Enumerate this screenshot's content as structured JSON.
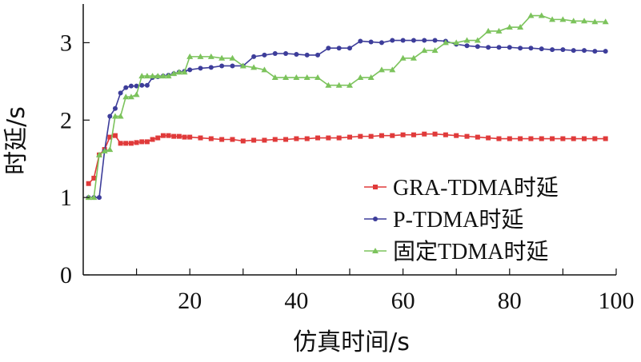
{
  "chart_data": {
    "type": "line",
    "xlabel": "仿真时间/s",
    "ylabel": "时延/s",
    "xlim": [
      0,
      100
    ],
    "ylim": [
      0,
      3.5
    ],
    "xticks": [
      20,
      40,
      60,
      80,
      100
    ],
    "yticks": [
      0,
      1,
      2,
      3
    ],
    "grid": false,
    "legend_position": "bottom-right",
    "series": [
      {
        "name": "GRA-TDMA时延",
        "color": "#e03a3a",
        "marker": "square",
        "x": [
          1,
          2,
          3,
          4,
          5,
          6,
          7,
          8,
          9,
          10,
          11,
          12,
          13,
          14,
          15,
          16,
          17,
          18,
          19,
          20,
          22,
          24,
          26,
          28,
          30,
          32,
          34,
          36,
          38,
          40,
          42,
          44,
          46,
          48,
          50,
          52,
          54,
          56,
          58,
          60,
          62,
          64,
          66,
          68,
          70,
          72,
          74,
          76,
          78,
          80,
          82,
          84,
          86,
          88,
          90,
          92,
          94,
          96,
          98
        ],
        "y": [
          1.18,
          1.25,
          1.55,
          1.62,
          1.78,
          1.8,
          1.7,
          1.7,
          1.7,
          1.71,
          1.72,
          1.72,
          1.75,
          1.77,
          1.8,
          1.8,
          1.79,
          1.79,
          1.78,
          1.78,
          1.77,
          1.76,
          1.75,
          1.75,
          1.73,
          1.74,
          1.74,
          1.75,
          1.75,
          1.76,
          1.76,
          1.77,
          1.77,
          1.77,
          1.78,
          1.79,
          1.79,
          1.8,
          1.8,
          1.81,
          1.81,
          1.82,
          1.82,
          1.81,
          1.8,
          1.79,
          1.78,
          1.77,
          1.76,
          1.76,
          1.76,
          1.76,
          1.76,
          1.76,
          1.76,
          1.76,
          1.76,
          1.76,
          1.76
        ]
      },
      {
        "name": "P-TDMA时延",
        "color": "#3d3d9a",
        "marker": "circle",
        "x": [
          1,
          2,
          3,
          4,
          5,
          6,
          7,
          8,
          9,
          10,
          11,
          12,
          13,
          14,
          15,
          16,
          17,
          18,
          19,
          20,
          22,
          24,
          26,
          28,
          30,
          32,
          34,
          36,
          38,
          40,
          42,
          44,
          46,
          48,
          50,
          52,
          54,
          56,
          58,
          60,
          62,
          64,
          66,
          68,
          70,
          72,
          74,
          76,
          78,
          80,
          82,
          84,
          86,
          88,
          90,
          92,
          94,
          96,
          98
        ],
        "y": [
          1.0,
          1.0,
          1.0,
          1.6,
          2.05,
          2.15,
          2.35,
          2.42,
          2.44,
          2.44,
          2.45,
          2.45,
          2.55,
          2.56,
          2.57,
          2.58,
          2.6,
          2.62,
          2.63,
          2.65,
          2.67,
          2.68,
          2.7,
          2.7,
          2.7,
          2.82,
          2.84,
          2.86,
          2.86,
          2.85,
          2.84,
          2.84,
          2.93,
          2.93,
          2.93,
          3.02,
          3.01,
          3.0,
          3.03,
          3.03,
          3.03,
          3.03,
          3.03,
          3.02,
          2.98,
          2.96,
          2.95,
          2.94,
          2.94,
          2.94,
          2.93,
          2.93,
          2.92,
          2.91,
          2.91,
          2.9,
          2.9,
          2.89,
          2.89
        ]
      },
      {
        "name": "固定TDMA时延",
        "color": "#7cc35c",
        "marker": "triangle",
        "x": [
          1,
          2,
          3,
          4,
          5,
          6,
          7,
          8,
          9,
          10,
          11,
          12,
          13,
          14,
          15,
          16,
          17,
          18,
          19,
          20,
          22,
          24,
          26,
          28,
          30,
          32,
          34,
          36,
          38,
          40,
          42,
          44,
          46,
          48,
          50,
          52,
          54,
          56,
          58,
          60,
          62,
          64,
          66,
          68,
          70,
          72,
          74,
          76,
          78,
          80,
          82,
          84,
          86,
          88,
          90,
          92,
          94,
          96,
          98
        ],
        "y": [
          1.0,
          1.0,
          1.55,
          1.6,
          1.62,
          2.05,
          2.05,
          2.3,
          2.3,
          2.33,
          2.57,
          2.57,
          2.57,
          2.57,
          2.57,
          2.57,
          2.6,
          2.62,
          2.62,
          2.82,
          2.82,
          2.82,
          2.8,
          2.8,
          2.7,
          2.68,
          2.65,
          2.55,
          2.55,
          2.55,
          2.55,
          2.55,
          2.45,
          2.45,
          2.45,
          2.55,
          2.55,
          2.65,
          2.65,
          2.8,
          2.8,
          2.9,
          2.9,
          3.0,
          3.0,
          3.03,
          3.03,
          3.15,
          3.15,
          3.2,
          3.2,
          3.35,
          3.35,
          3.3,
          3.3,
          3.28,
          3.28,
          3.27,
          3.27
        ]
      }
    ]
  }
}
